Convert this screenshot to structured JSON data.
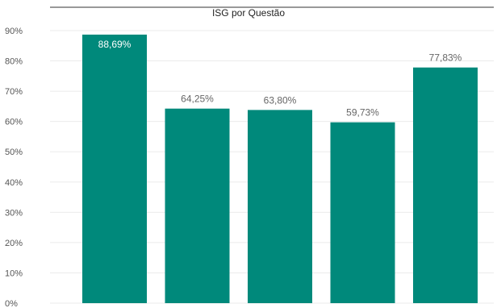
{
  "chart_data": {
    "type": "bar",
    "title": "ISG por Questão",
    "xlabel": "",
    "ylabel": "",
    "categories": [
      "",
      "",
      "",
      "",
      ""
    ],
    "values": [
      88.69,
      64.25,
      63.8,
      59.73,
      77.83
    ],
    "data_labels": [
      "88,69%",
      "64,25%",
      "63,80%",
      "59,73%",
      "77,83%"
    ],
    "ylim": [
      0,
      90
    ],
    "yticks": [
      0,
      10,
      20,
      30,
      40,
      50,
      60,
      70,
      80,
      90
    ],
    "ytick_labels": [
      "0%",
      "10%",
      "20%",
      "30%",
      "40%",
      "50%",
      "60%",
      "70%",
      "80%",
      "90%"
    ],
    "grid": true,
    "legend": "none",
    "colors": {
      "bar": "#00897B",
      "grid": "#EBEBEB",
      "label_inside": "#FFFFFF",
      "label_outside": "#666666"
    }
  }
}
